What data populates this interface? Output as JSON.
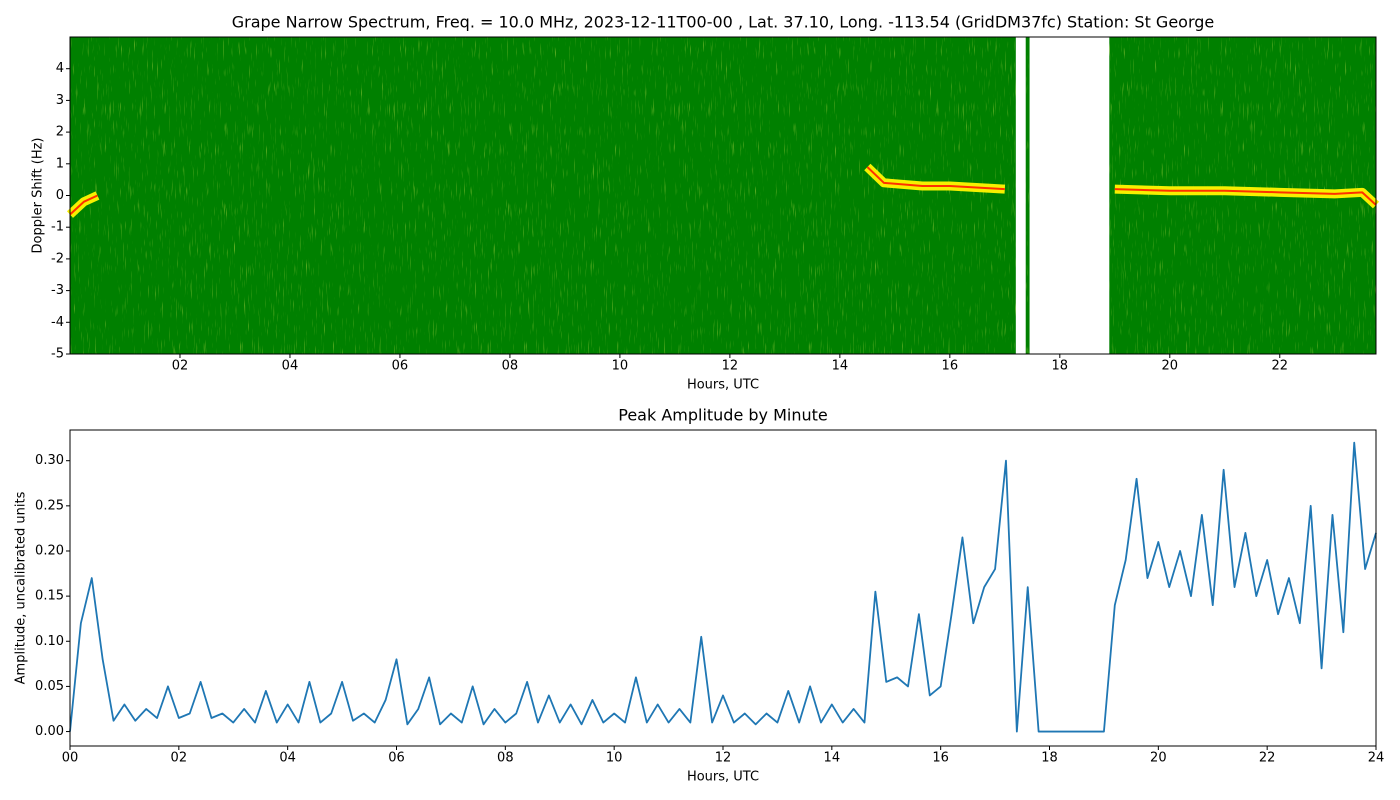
{
  "chart_data": [
    {
      "type": "spectrogram",
      "title": "Grape Narrow Spectrum, Freq. = 10.0 MHz, 2023-12-11T00-00 , Lat.  37.10, Long. -113.54 (GridDM37fc) Station: St George",
      "x_label": "Hours, UTC",
      "y_label": "Doppler Shift (Hz)",
      "xlim": [
        0,
        23.75
      ],
      "ylim": [
        -5,
        5
      ],
      "xticks": [
        {
          "value": 2,
          "label": "02"
        },
        {
          "value": 4,
          "label": "04"
        },
        {
          "value": 6,
          "label": "06"
        },
        {
          "value": 8,
          "label": "08"
        },
        {
          "value": 10,
          "label": "10"
        },
        {
          "value": 12,
          "label": "12"
        },
        {
          "value": 14,
          "label": "14"
        },
        {
          "value": 16,
          "label": "16"
        },
        {
          "value": 18,
          "label": "18"
        },
        {
          "value": 20,
          "label": "20"
        },
        {
          "value": 22,
          "label": "22"
        }
      ],
      "yticks": [
        -5,
        -4,
        -3,
        -2,
        -1,
        0,
        1,
        2,
        3,
        4
      ],
      "color": "#008000",
      "trace_color": "#ff3000",
      "gaps": [
        [
          17.2,
          17.38
        ],
        [
          17.45,
          18.9
        ]
      ],
      "x": [
        0,
        0.25,
        0.5,
        1,
        14.5,
        14.8,
        15.5,
        16,
        17,
        17.3,
        19,
        20,
        21,
        22,
        23,
        23.5,
        23.75
      ],
      "values": [
        -0.6,
        -0.2,
        0,
        null,
        0.9,
        0.4,
        0.3,
        0.3,
        0.2,
        null,
        0.2,
        0.15,
        0.15,
        0.1,
        0.05,
        0.1,
        -0.3
      ]
    },
    {
      "type": "line",
      "title": "Peak Amplitude by Minute",
      "x_label": "Hours, UTC",
      "y_label": "Amplitude, uncalibrated units",
      "xlim": [
        0,
        24
      ],
      "ylim": [
        -0.016,
        0.334
      ],
      "xticks": [
        {
          "value": 0,
          "label": "00"
        },
        {
          "value": 2,
          "label": "02"
        },
        {
          "value": 4,
          "label": "04"
        },
        {
          "value": 6,
          "label": "06"
        },
        {
          "value": 8,
          "label": "08"
        },
        {
          "value": 10,
          "label": "10"
        },
        {
          "value": 12,
          "label": "12"
        },
        {
          "value": 14,
          "label": "14"
        },
        {
          "value": 16,
          "label": "16"
        },
        {
          "value": 18,
          "label": "18"
        },
        {
          "value": 20,
          "label": "20"
        },
        {
          "value": 22,
          "label": "22"
        },
        {
          "value": 24,
          "label": "24"
        }
      ],
      "yticks": [
        {
          "value": 0,
          "label": "0.00"
        },
        {
          "value": 0.05,
          "label": "0.05"
        },
        {
          "value": 0.1,
          "label": "0.10"
        },
        {
          "value": 0.15,
          "label": "0.15"
        },
        {
          "value": 0.2,
          "label": "0.20"
        },
        {
          "value": 0.25,
          "label": "0.25"
        },
        {
          "value": 0.3,
          "label": "0.30"
        }
      ],
      "color": "#1f77b4",
      "x": [
        0,
        0.2,
        0.4,
        0.6,
        0.8,
        1,
        1.2,
        1.4,
        1.6,
        1.8,
        2,
        2.2,
        2.4,
        2.6,
        2.8,
        3,
        3.2,
        3.4,
        3.6,
        3.8,
        4,
        4.2,
        4.4,
        4.6,
        4.8,
        5,
        5.2,
        5.4,
        5.6,
        5.8,
        6,
        6.2,
        6.4,
        6.6,
        6.8,
        7,
        7.2,
        7.4,
        7.6,
        7.8,
        8,
        8.2,
        8.4,
        8.6,
        8.8,
        9,
        9.2,
        9.4,
        9.6,
        9.8,
        10,
        10.2,
        10.4,
        10.6,
        10.8,
        11,
        11.2,
        11.4,
        11.6,
        11.8,
        12,
        12.2,
        12.4,
        12.6,
        12.8,
        13,
        13.2,
        13.4,
        13.6,
        13.8,
        14,
        14.2,
        14.4,
        14.6,
        14.8,
        15,
        15.2,
        15.4,
        15.6,
        15.8,
        16,
        16.2,
        16.4,
        16.6,
        16.8,
        17,
        17.2,
        17.4,
        17.6,
        17.8,
        18,
        18.2,
        18.4,
        18.6,
        18.8,
        19,
        19.2,
        19.4,
        19.6,
        19.8,
        20,
        20.2,
        20.4,
        20.6,
        20.8,
        21,
        21.2,
        21.4,
        21.6,
        21.8,
        22,
        22.2,
        22.4,
        22.6,
        22.8,
        23,
        23.2,
        23.4,
        23.6,
        23.8,
        24
      ],
      "values": [
        0,
        0.12,
        0.17,
        0.08,
        0.012,
        0.03,
        0.012,
        0.025,
        0.015,
        0.05,
        0.015,
        0.02,
        0.055,
        0.015,
        0.02,
        0.01,
        0.025,
        0.01,
        0.045,
        0.01,
        0.03,
        0.01,
        0.055,
        0.01,
        0.02,
        0.055,
        0.012,
        0.02,
        0.01,
        0.035,
        0.08,
        0.008,
        0.025,
        0.06,
        0.008,
        0.02,
        0.01,
        0.05,
        0.008,
        0.025,
        0.01,
        0.02,
        0.055,
        0.01,
        0.04,
        0.01,
        0.03,
        0.008,
        0.035,
        0.01,
        0.02,
        0.01,
        0.06,
        0.01,
        0.03,
        0.01,
        0.025,
        0.01,
        0.105,
        0.01,
        0.04,
        0.01,
        0.02,
        0.008,
        0.02,
        0.01,
        0.045,
        0.01,
        0.05,
        0.01,
        0.03,
        0.01,
        0.025,
        0.01,
        0.155,
        0.055,
        0.06,
        0.05,
        0.13,
        0.04,
        0.05,
        0.13,
        0.215,
        0.12,
        0.16,
        0.18,
        0.3,
        0,
        0.16,
        0,
        0,
        0,
        0,
        0,
        0,
        0,
        0.14,
        0.19,
        0.28,
        0.17,
        0.21,
        0.16,
        0.2,
        0.15,
        0.24,
        0.14,
        0.29,
        0.16,
        0.22,
        0.15,
        0.19,
        0.13,
        0.17,
        0.12,
        0.25,
        0.07,
        0.24,
        0.11,
        0.32,
        0.18,
        0.22
      ]
    }
  ]
}
